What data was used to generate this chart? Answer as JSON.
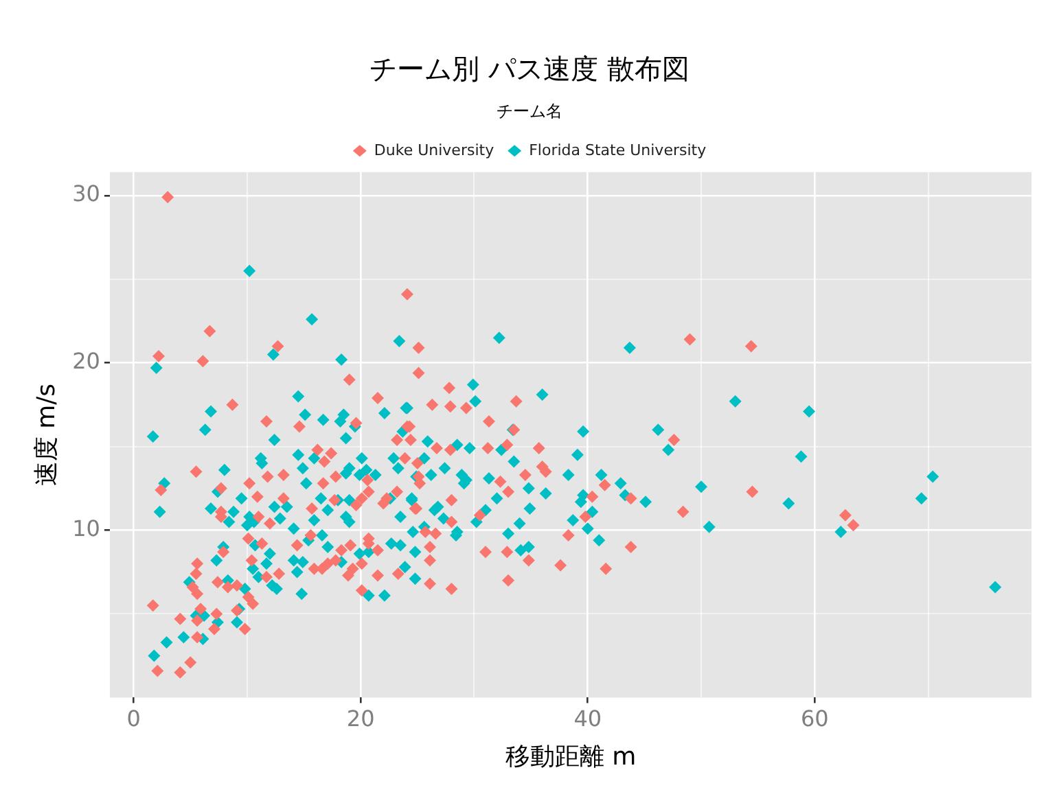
{
  "chart_data": {
    "type": "scatter",
    "title": "チーム別 パス速度 散布図",
    "xlabel": "移動距離 m",
    "ylabel": "速度 m/s",
    "legend_title": "チーム名",
    "legend": "top",
    "marker": "diamond",
    "grid": true,
    "xlim": [
      -2.1,
      79.1
    ],
    "ylim": [
      0,
      31.4
    ],
    "xticks": [
      0,
      {
        "value": 10,
        "label": null
      },
      20,
      {
        "value": 30,
        "label": null
      },
      40,
      {
        "value": 50,
        "label": null
      },
      60,
      {
        "value": 70,
        "label": null
      }
    ],
    "yticks": [
      {
        "value": 5,
        "label": null
      },
      10,
      {
        "value": 15,
        "label": null
      },
      20,
      {
        "value": 25,
        "label": null
      },
      30
    ],
    "series": [
      {
        "name": "Duke University",
        "color": "#f8766d",
        "x": [
          3.0,
          6.7,
          2.2,
          6.1,
          12.7,
          24.1,
          25.1,
          19.0,
          25.1,
          21.5,
          8.7,
          11.7,
          14.6,
          19.6,
          24.1,
          49.0,
          54.4,
          54.5,
          62.7,
          63.4,
          48.4,
          47.6,
          35.7,
          32.9,
          31.2,
          27.9,
          26.7,
          36.0,
          36.3,
          41.5,
          43.8,
          40.4,
          39.8,
          38.3,
          43.8,
          41.6,
          37.6,
          34.5,
          33.0,
          32.3,
          30.5,
          31.0,
          32.9,
          34.8,
          33.0,
          28.0,
          26.1,
          26.1,
          26.1,
          26.6,
          28.0,
          28.0,
          24.9,
          25.2,
          25.0,
          24.4,
          25.7,
          31.3,
          27.8,
          26.3,
          27.9,
          29.3,
          33.7,
          24.3,
          33.5,
          23.2,
          16.2,
          17.4,
          16.8,
          5.5,
          11.8,
          13.2,
          16.7,
          17.8,
          20.6,
          23.9,
          25.1,
          2.4,
          7.7,
          10.2,
          10.9,
          7.7,
          7.7,
          11.0,
          12.0,
          13.2,
          14.4,
          15.6,
          15.7,
          17.7,
          18.3,
          19.1,
          19.3,
          19.6,
          20.1,
          20.7,
          21.5,
          20.7,
          21.5,
          23.3,
          24.8,
          22.3,
          23.2,
          22.0,
          20.7,
          20.1,
          20.1,
          18.9,
          15.9,
          16.6,
          17.1,
          17.8,
          12.8,
          11.7,
          10.4,
          10.1,
          11.3,
          9.1,
          8.3,
          10.1,
          10.5,
          7.4,
          7.9,
          5.6,
          5.5,
          5.2,
          5.6,
          5.9,
          5.6,
          7.3,
          7.1,
          5.6,
          4.1,
          1.7,
          2.1,
          4.1,
          5.0,
          9.8,
          9.1
        ],
        "values": [
          29.9,
          21.9,
          20.4,
          20.1,
          21.0,
          24.1,
          20.9,
          19.0,
          19.4,
          17.9,
          17.5,
          16.5,
          16.2,
          16.4,
          16.2,
          21.4,
          21.0,
          12.3,
          10.9,
          10.3,
          11.1,
          15.4,
          14.9,
          15.1,
          14.9,
          14.8,
          14.9,
          13.8,
          13.5,
          12.7,
          11.9,
          12.0,
          10.8,
          9.7,
          9.0,
          7.7,
          7.9,
          13.3,
          12.3,
          12.9,
          10.9,
          8.7,
          8.7,
          8.2,
          7.0,
          6.5,
          6.8,
          8.2,
          9.0,
          9.8,
          10.5,
          11.8,
          11.3,
          12.8,
          14.0,
          15.4,
          9.9,
          16.5,
          18.5,
          17.5,
          17.4,
          17.3,
          17.7,
          16.2,
          16.0,
          15.4,
          14.8,
          14.6,
          14.1,
          13.5,
          13.2,
          13.3,
          12.8,
          13.2,
          13.0,
          14.3,
          13.2,
          12.4,
          12.5,
          12.8,
          12.0,
          11.1,
          10.8,
          10.8,
          10.4,
          11.9,
          9.1,
          9.7,
          11.3,
          11.8,
          8.8,
          9.1,
          7.7,
          11.5,
          11.9,
          9.5,
          8.8,
          9.2,
          7.3,
          7.4,
          11.3,
          11.9,
          12.3,
          11.6,
          12.3,
          8.0,
          6.4,
          7.3,
          7.7,
          7.7,
          8.0,
          8.2,
          7.4,
          7.2,
          8.2,
          9.5,
          9.2,
          6.7,
          6.6,
          6.0,
          5.6,
          6.9,
          8.7,
          8.0,
          7.4,
          6.6,
          6.2,
          5.3,
          4.6,
          5.0,
          4.1,
          3.6,
          4.7,
          5.5,
          1.6,
          1.5,
          2.1,
          4.1,
          5.2
        ]
      },
      {
        "name": "Florida State University",
        "color": "#00bfc4",
        "x": [
          2.0,
          10.2,
          15.7,
          12.3,
          18.3,
          23.4,
          32.2,
          43.7,
          53.0,
          59.5,
          57.7,
          58.8,
          70.4,
          62.3,
          69.4,
          75.9,
          50.0,
          50.7,
          46.2,
          47.1,
          39.6,
          39.1,
          32.4,
          29.6,
          28.5,
          25.9,
          38.3,
          41.2,
          42.9,
          43.3,
          45.1,
          39.6,
          39.4,
          40.4,
          40.0,
          38.7,
          41.0,
          36.3,
          34.9,
          34.8,
          33.5,
          31.3,
          32.0,
          31.0,
          30.2,
          34.0,
          33.0,
          34.1,
          34.8,
          24.8,
          24.8,
          28.4,
          28.5,
          29.1,
          29.3,
          28.9,
          27.3,
          27.4,
          26.2,
          26.5,
          26.8,
          24.5,
          24.9,
          25.6,
          24.6,
          29.9,
          30.1,
          36.0,
          24.1,
          33.4,
          14.5,
          6.8,
          24.0,
          22.1,
          15.1,
          16.7,
          18.5,
          18.2,
          19.5,
          6.3,
          1.7,
          23.7,
          12.4,
          18.7,
          14.5,
          15.9,
          11.2,
          11.3,
          8.0,
          14.9,
          15.2,
          18.7,
          19.0,
          20.1,
          20.5,
          21.3,
          22.9,
          23.3,
          2.7,
          2.3,
          7.4,
          9.5,
          6.8,
          8.4,
          8.8,
          10.0,
          10.2,
          10.6,
          12.9,
          13.5,
          12.4,
          14.1,
          15.4,
          14.1,
          14.9,
          15.9,
          16.5,
          17.1,
          16.6,
          18.0,
          18.7,
          19.0,
          18.3,
          19.0,
          19.9,
          22.7,
          23.5,
          23.9,
          23.5,
          24.5,
          25.6,
          22.6,
          20.7,
          19.9,
          22.1,
          20.7,
          14.4,
          14.8,
          17.1,
          11.7,
          12.2,
          12.6,
          10.5,
          11.0,
          12.0,
          10.7,
          9.8,
          8.3,
          7.3,
          7.9,
          4.9,
          5.5,
          6.2,
          7.4,
          6.1,
          4.4,
          2.9,
          1.8,
          9.3,
          9.1
        ],
        "values": [
          19.7,
          25.5,
          22.6,
          20.5,
          20.2,
          21.3,
          21.5,
          20.9,
          17.7,
          17.1,
          11.6,
          14.4,
          13.2,
          9.9,
          11.9,
          6.6,
          12.6,
          10.2,
          16.0,
          14.8,
          15.9,
          14.5,
          14.8,
          14.9,
          15.1,
          15.3,
          13.3,
          13.3,
          12.8,
          12.1,
          11.7,
          12.1,
          11.7,
          11.1,
          10.1,
          10.6,
          9.4,
          12.2,
          11.3,
          12.5,
          14.1,
          13.1,
          11.9,
          11.2,
          10.5,
          10.4,
          9.8,
          8.8,
          9.0,
          7.1,
          8.7,
          9.7,
          9.9,
          12.8,
          13.0,
          13.3,
          10.7,
          13.7,
          13.3,
          11.2,
          11.4,
          11.8,
          13.2,
          14.3,
          9.9,
          18.7,
          17.7,
          18.1,
          17.3,
          16.0,
          18.0,
          17.1,
          17.3,
          17.0,
          16.9,
          16.6,
          16.9,
          16.5,
          16.2,
          16.0,
          15.6,
          15.9,
          15.4,
          15.5,
          14.5,
          14.3,
          14.3,
          14.0,
          13.6,
          13.7,
          12.8,
          13.4,
          13.7,
          14.3,
          13.6,
          13.3,
          14.3,
          13.7,
          12.8,
          11.1,
          12.3,
          11.9,
          11.3,
          10.5,
          11.1,
          10.3,
          10.8,
          10.5,
          10.7,
          11.4,
          11.4,
          10.1,
          9.4,
          8.2,
          8.1,
          10.6,
          11.9,
          11.2,
          9.7,
          11.8,
          10.8,
          10.5,
          8.1,
          11.8,
          13.3,
          9.2,
          9.1,
          7.8,
          10.8,
          11.9,
          10.2,
          11.9,
          8.7,
          8.6,
          6.1,
          6.1,
          7.5,
          6.2,
          9.0,
          8.0,
          6.7,
          6.5,
          7.7,
          7.2,
          8.6,
          9.1,
          6.5,
          7.0,
          8.2,
          9.0,
          6.9,
          4.9,
          4.9,
          4.5,
          3.5,
          3.6,
          3.3,
          2.5,
          5.3,
          4.5
        ]
      }
    ]
  }
}
